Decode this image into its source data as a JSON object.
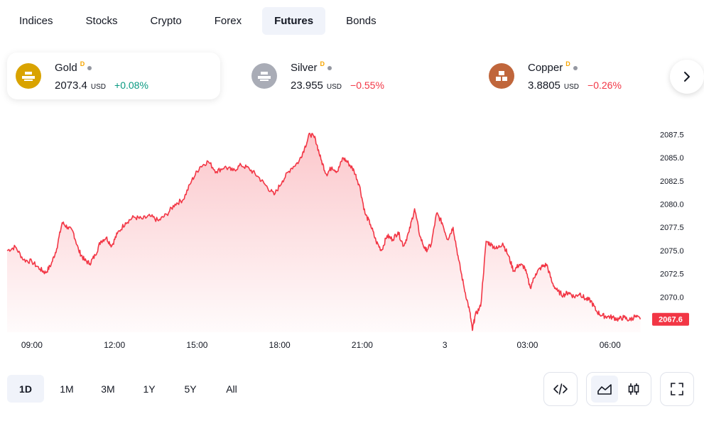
{
  "tabs": [
    "Indices",
    "Stocks",
    "Crypto",
    "Forex",
    "Futures",
    "Bonds"
  ],
  "active_tab": "Futures",
  "tickers": [
    {
      "name": "Gold",
      "delay_mark": "D",
      "price": "2073.4",
      "unit": "USD",
      "change": "+0.08%",
      "direction": "up",
      "icon": "gold-bars-icon",
      "color": "#d9a300",
      "active": true
    },
    {
      "name": "Silver",
      "delay_mark": "D",
      "price": "23.955",
      "unit": "USD",
      "change": "−0.55%",
      "direction": "down",
      "icon": "silver-bars-icon",
      "color": "#a9acb6",
      "active": false
    },
    {
      "name": "Copper",
      "delay_mark": "D",
      "price": "3.8805",
      "unit": "USD",
      "change": "−0.26%",
      "direction": "down",
      "icon": "copper-bars-icon",
      "color": "#c0663b",
      "active": false
    }
  ],
  "ranges": [
    "1D",
    "1M",
    "3M",
    "1Y",
    "5Y",
    "All"
  ],
  "active_range": "1D",
  "colors": {
    "line": "#f23645",
    "up": "#089981",
    "down": "#f23645",
    "active_bg": "#f0f3fa"
  },
  "chart_data": {
    "type": "area",
    "y_ticks": [
      2087.5,
      2085.0,
      2082.5,
      2080.0,
      2077.5,
      2075.0,
      2072.5,
      2070.0
    ],
    "y_tick_labels": [
      "2087.5",
      "2085.0",
      "2082.5",
      "2080.0",
      "2077.5",
      "2075.0",
      "2072.5",
      "2070.0"
    ],
    "ylim": [
      2066.2,
      2088.6
    ],
    "x_ticks": [
      {
        "label": "09:00",
        "t": 0.9
      },
      {
        "label": "12:00",
        "t": 3.9
      },
      {
        "label": "15:00",
        "t": 6.9
      },
      {
        "label": "18:00",
        "t": 9.9
      },
      {
        "label": "21:00",
        "t": 12.9
      },
      {
        "label": "3",
        "t": 15.9
      },
      {
        "label": "03:00",
        "t": 18.9
      },
      {
        "label": "06:00",
        "t": 21.9
      }
    ],
    "xlim": [
      0,
      23.3
    ],
    "last_value": "2067.6",
    "series": [
      {
        "x": [
          0,
          0.3,
          0.6,
          0.9,
          1.2,
          1.4,
          1.6,
          1.8,
          2.0,
          2.2,
          2.4,
          2.6,
          2.8,
          3.0,
          3.2,
          3.4,
          3.6,
          3.8,
          4.0,
          4.3,
          4.6,
          4.9,
          5.2,
          5.5,
          5.8,
          6.1,
          6.4,
          6.7,
          7.0,
          7.3,
          7.6,
          7.9,
          8.2,
          8.5,
          8.8,
          9.1,
          9.4,
          9.7,
          10.0,
          10.3,
          10.6,
          10.8,
          11.0,
          11.2,
          11.4,
          11.6,
          11.8,
          12.0,
          12.2,
          12.4,
          12.6,
          12.8,
          13.0,
          13.2,
          13.4,
          13.6,
          13.8,
          14.0,
          14.2,
          14.4,
          14.6,
          14.8,
          15.0,
          15.2,
          15.4,
          15.6,
          15.8,
          16.0,
          16.2,
          16.4,
          16.6,
          16.8,
          16.9,
          17.0,
          17.2,
          17.4,
          17.6,
          17.8,
          18.0,
          18.2,
          18.4,
          18.6,
          18.8,
          19.0,
          19.2,
          19.4,
          19.6,
          19.8,
          20.0,
          20.2,
          20.4,
          20.6,
          20.8,
          21.0,
          21.2,
          21.4,
          21.6,
          21.8,
          22.0,
          22.2,
          22.4,
          22.6,
          22.8,
          23.0
        ],
        "y": [
          2075.0,
          2075.4,
          2074.0,
          2073.8,
          2073.0,
          2072.6,
          2073.5,
          2075.2,
          2078.0,
          2077.5,
          2077.0,
          2075.0,
          2074.0,
          2073.6,
          2074.5,
          2076.0,
          2076.4,
          2075.5,
          2076.8,
          2078.0,
          2078.6,
          2078.4,
          2078.7,
          2078.2,
          2078.9,
          2080.0,
          2080.5,
          2082.5,
          2084.0,
          2084.6,
          2083.5,
          2084.0,
          2083.6,
          2084.2,
          2083.8,
          2083.0,
          2082.0,
          2081.0,
          2082.5,
          2083.8,
          2084.6,
          2086.0,
          2087.6,
          2087.0,
          2084.8,
          2083.2,
          2084.0,
          2083.5,
          2085.0,
          2084.4,
          2083.6,
          2082.0,
          2079.0,
          2077.8,
          2076.0,
          2075.0,
          2076.6,
          2076.2,
          2077.0,
          2075.5,
          2077.0,
          2079.5,
          2076.5,
          2075.0,
          2075.6,
          2079.0,
          2078.0,
          2076.2,
          2077.5,
          2074.0,
          2071.0,
          2068.5,
          2066.4,
          2068.0,
          2069.0,
          2076.0,
          2075.6,
          2075.2,
          2075.8,
          2074.5,
          2072.8,
          2073.5,
          2073.2,
          2071.0,
          2072.5,
          2073.2,
          2073.5,
          2071.5,
          2070.6,
          2070.2,
          2070.5,
          2070.0,
          2070.4,
          2069.8,
          2069.6,
          2068.5,
          2068.0,
          2067.9,
          2067.8,
          2067.6,
          2067.8,
          2067.5,
          2067.9,
          2067.6
        ]
      }
    ]
  }
}
